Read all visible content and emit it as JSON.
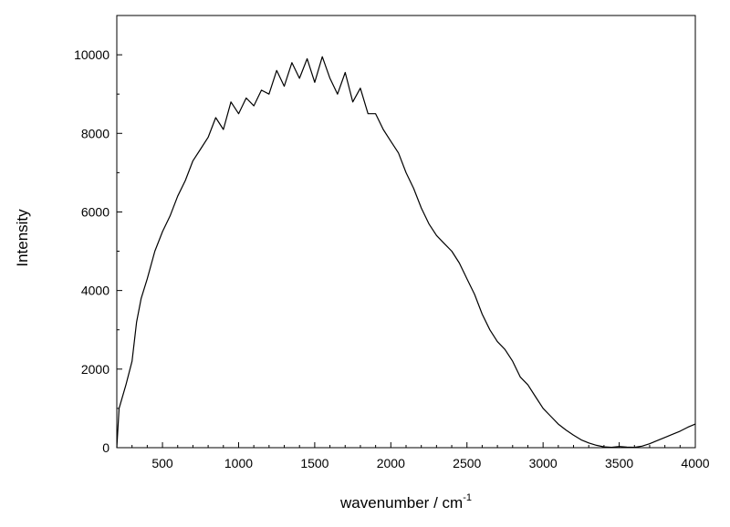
{
  "chart_data": {
    "type": "line",
    "title": "",
    "xlabel": "wavenumber / cm",
    "xlabel_superscript": "-1",
    "ylabel": "Intensity",
    "xlim": [
      200,
      4000
    ],
    "ylim": [
      0,
      11000
    ],
    "x_ticks": [
      500,
      1000,
      1500,
      2000,
      2500,
      3000,
      3500,
      4000
    ],
    "y_ticks": [
      0,
      2000,
      4000,
      6000,
      8000,
      10000
    ],
    "grid": false,
    "legend": "none",
    "line_color": "#000000",
    "series": [
      {
        "x": [
          200,
          215,
          230,
          260,
          300,
          330,
          360,
          400,
          450,
          500,
          550,
          600,
          650,
          700,
          750,
          800,
          850,
          900,
          950,
          1000,
          1050,
          1100,
          1150,
          1200,
          1250,
          1300,
          1350,
          1400,
          1450,
          1500,
          1550,
          1600,
          1650,
          1700,
          1750,
          1800,
          1850,
          1900,
          1950,
          2000,
          2050,
          2100,
          2150,
          2200,
          2250,
          2300,
          2350,
          2400,
          2450,
          2500,
          2550,
          2600,
          2650,
          2700,
          2750,
          2800,
          2850,
          2900,
          2950,
          3000,
          3050,
          3100,
          3150,
          3200,
          3250,
          3300,
          3350,
          3400,
          3450,
          3500,
          3550,
          3600,
          3650,
          3700,
          3750,
          3800,
          3850,
          3900,
          3950,
          4000
        ],
        "y": [
          0,
          1000,
          1200,
          1600,
          2200,
          3200,
          3800,
          4300,
          5000,
          5500,
          5900,
          6400,
          6800,
          7300,
          7600,
          7900,
          8400,
          8100,
          8800,
          8500,
          8900,
          8700,
          9100,
          9000,
          9600,
          9200,
          9800,
          9400,
          9900,
          9300,
          9950,
          9400,
          9000,
          9550,
          8800,
          9150,
          8500,
          8500,
          8100,
          7800,
          7500,
          7000,
          6600,
          6100,
          5700,
          5400,
          5200,
          5000,
          4700,
          4300,
          3900,
          3400,
          3000,
          2700,
          2500,
          2200,
          1800,
          1600,
          1300,
          1000,
          800,
          600,
          450,
          320,
          200,
          120,
          60,
          20,
          10,
          30,
          15,
          10,
          40,
          100,
          180,
          260,
          340,
          420,
          520,
          600
        ]
      }
    ]
  }
}
